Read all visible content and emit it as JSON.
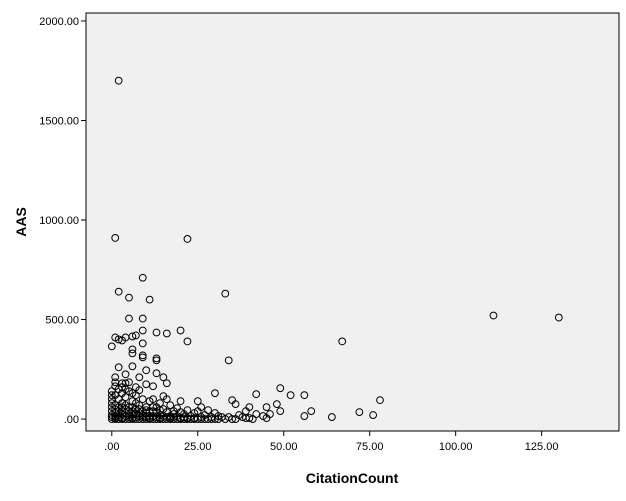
{
  "chart_data": {
    "type": "scatter",
    "xlabel": "CitationCount",
    "ylabel": "AAS",
    "xlim": [
      -7.5,
      147.5
    ],
    "ylim": [
      -60,
      2040
    ],
    "x_ticks": [
      0,
      25,
      50,
      75,
      100,
      125
    ],
    "x_tick_labels": [
      ".00",
      "25.00",
      "50.00",
      "75.00",
      "100.00",
      "125.00"
    ],
    "y_ticks": [
      0,
      500,
      1000,
      1500,
      2000
    ],
    "y_tick_labels": [
      ".00",
      "500.00",
      "1000.00",
      "1500.00",
      "2000.00"
    ],
    "grid": false,
    "plot_background": "#f0f0f0",
    "marker_color": "#000000",
    "points": [
      [
        2,
        1700
      ],
      [
        1,
        910
      ],
      [
        22,
        905
      ],
      [
        9,
        710
      ],
      [
        33,
        630
      ],
      [
        2,
        640
      ],
      [
        5,
        610
      ],
      [
        11,
        600
      ],
      [
        111,
        520
      ],
      [
        130,
        510
      ],
      [
        5,
        505
      ],
      [
        9,
        505
      ],
      [
        67,
        390
      ],
      [
        20,
        445
      ],
      [
        13,
        435
      ],
      [
        16,
        430
      ],
      [
        9,
        445
      ],
      [
        7,
        420
      ],
      [
        6,
        415
      ],
      [
        4,
        410
      ],
      [
        2,
        400
      ],
      [
        1,
        410
      ],
      [
        3,
        395
      ],
      [
        22,
        390
      ],
      [
        9,
        380
      ],
      [
        0,
        365
      ],
      [
        6,
        350
      ],
      [
        6,
        330
      ],
      [
        13,
        305
      ],
      [
        13,
        295
      ],
      [
        34,
        295
      ],
      [
        9,
        310
      ],
      [
        9,
        320
      ],
      [
        2,
        260
      ],
      [
        6,
        265
      ],
      [
        10,
        245
      ],
      [
        13,
        230
      ],
      [
        4,
        225
      ],
      [
        1,
        210
      ],
      [
        8,
        210
      ],
      [
        15,
        210
      ],
      [
        3,
        180
      ],
      [
        5,
        185
      ],
      [
        10,
        175
      ],
      [
        16,
        180
      ],
      [
        1,
        165
      ],
      [
        12,
        165
      ],
      [
        4,
        150
      ],
      [
        8,
        145
      ],
      [
        49,
        155
      ],
      [
        52,
        120
      ],
      [
        56,
        120
      ],
      [
        42,
        125
      ],
      [
        30,
        130
      ],
      [
        15,
        115
      ],
      [
        35,
        95
      ],
      [
        78,
        95
      ],
      [
        20,
        90
      ],
      [
        25,
        90
      ],
      [
        36,
        75
      ],
      [
        48,
        75
      ],
      [
        12,
        100
      ],
      [
        6,
        130
      ],
      [
        45,
        60
      ],
      [
        40,
        60
      ],
      [
        39,
        40
      ],
      [
        49,
        40
      ],
      [
        58,
        40
      ],
      [
        72,
        35
      ],
      [
        42,
        25
      ],
      [
        46,
        25
      ],
      [
        76,
        20
      ],
      [
        44,
        15
      ],
      [
        56,
        15
      ],
      [
        64,
        10
      ],
      [
        37,
        20
      ],
      [
        38,
        10
      ],
      [
        39,
        5
      ],
      [
        40,
        5
      ],
      [
        45,
        5
      ],
      [
        32,
        10
      ],
      [
        30,
        30
      ],
      [
        28,
        45
      ],
      [
        26,
        60
      ],
      [
        24,
        30
      ],
      [
        23,
        15
      ],
      [
        21,
        25
      ],
      [
        19,
        55
      ],
      [
        18,
        40
      ],
      [
        17,
        70
      ],
      [
        17,
        15
      ],
      [
        16,
        100
      ],
      [
        15,
        50
      ],
      [
        14,
        80
      ],
      [
        14,
        20
      ],
      [
        13,
        60
      ],
      [
        12,
        40
      ],
      [
        11,
        90
      ],
      [
        11,
        15
      ],
      [
        10,
        60
      ],
      [
        10,
        30
      ],
      [
        9,
        100
      ],
      [
        9,
        10
      ],
      [
        8,
        70
      ],
      [
        8,
        30
      ],
      [
        7,
        120
      ],
      [
        7,
        50
      ],
      [
        7,
        10
      ],
      [
        6,
        90
      ],
      [
        6,
        40
      ],
      [
        6,
        5
      ],
      [
        5,
        140
      ],
      [
        5,
        60
      ],
      [
        5,
        20
      ],
      [
        4,
        110
      ],
      [
        4,
        70
      ],
      [
        4,
        30
      ],
      [
        3,
        130
      ],
      [
        3,
        80
      ],
      [
        3,
        40
      ],
      [
        3,
        5
      ],
      [
        2,
        100
      ],
      [
        2,
        60
      ],
      [
        2,
        20
      ],
      [
        1,
        120
      ],
      [
        1,
        70
      ],
      [
        1,
        30
      ],
      [
        1,
        5
      ],
      [
        0,
        140
      ],
      [
        0,
        80
      ],
      [
        0,
        40
      ],
      [
        0,
        10
      ],
      [
        0,
        0
      ],
      [
        1,
        0
      ],
      [
        2,
        0
      ],
      [
        3,
        0
      ],
      [
        4,
        0
      ],
      [
        5,
        0
      ],
      [
        6,
        0
      ],
      [
        7,
        0
      ],
      [
        8,
        0
      ],
      [
        9,
        0
      ],
      [
        10,
        0
      ],
      [
        11,
        0
      ],
      [
        12,
        0
      ],
      [
        13,
        0
      ],
      [
        14,
        0
      ],
      [
        15,
        0
      ],
      [
        16,
        0
      ],
      [
        17,
        0
      ],
      [
        18,
        0
      ],
      [
        19,
        0
      ],
      [
        20,
        0
      ],
      [
        21,
        0
      ],
      [
        22,
        0
      ],
      [
        23,
        0
      ],
      [
        24,
        0
      ],
      [
        25,
        0
      ],
      [
        26,
        0
      ],
      [
        27,
        0
      ],
      [
        28,
        0
      ],
      [
        29,
        0
      ],
      [
        30,
        0
      ],
      [
        31,
        0
      ],
      [
        33,
        0
      ],
      [
        35,
        0
      ],
      [
        36,
        0
      ],
      [
        41,
        0
      ],
      [
        0,
        20
      ],
      [
        1,
        15
      ],
      [
        2,
        10
      ],
      [
        3,
        25
      ],
      [
        4,
        15
      ],
      [
        5,
        10
      ],
      [
        6,
        20
      ],
      [
        7,
        25
      ],
      [
        8,
        15
      ],
      [
        9,
        20
      ],
      [
        10,
        10
      ],
      [
        11,
        5
      ],
      [
        12,
        15
      ],
      [
        13,
        10
      ],
      [
        14,
        5
      ],
      [
        15,
        15
      ],
      [
        16,
        10
      ],
      [
        17,
        5
      ],
      [
        18,
        10
      ],
      [
        19,
        15
      ],
      [
        20,
        5
      ],
      [
        21,
        10
      ],
      [
        22,
        5
      ],
      [
        24,
        5
      ],
      [
        26,
        10
      ],
      [
        27,
        20
      ],
      [
        29,
        10
      ],
      [
        31,
        15
      ],
      [
        34,
        10
      ],
      [
        0,
        60
      ],
      [
        0,
        100
      ],
      [
        1,
        50
      ],
      [
        2,
        40
      ],
      [
        3,
        60
      ],
      [
        4,
        50
      ],
      [
        5,
        40
      ],
      [
        6,
        60
      ],
      [
        7,
        80
      ],
      [
        8,
        50
      ],
      [
        9,
        40
      ],
      [
        10,
        45
      ],
      [
        11,
        40
      ],
      [
        12,
        60
      ],
      [
        13,
        35
      ],
      [
        14,
        45
      ],
      [
        16,
        35
      ],
      [
        18,
        25
      ],
      [
        20,
        35
      ],
      [
        22,
        45
      ],
      [
        25,
        40
      ],
      [
        2,
        150
      ],
      [
        3,
        160
      ],
      [
        4,
        180
      ],
      [
        7,
        160
      ],
      [
        1,
        185
      ],
      [
        0,
        120
      ]
    ]
  }
}
